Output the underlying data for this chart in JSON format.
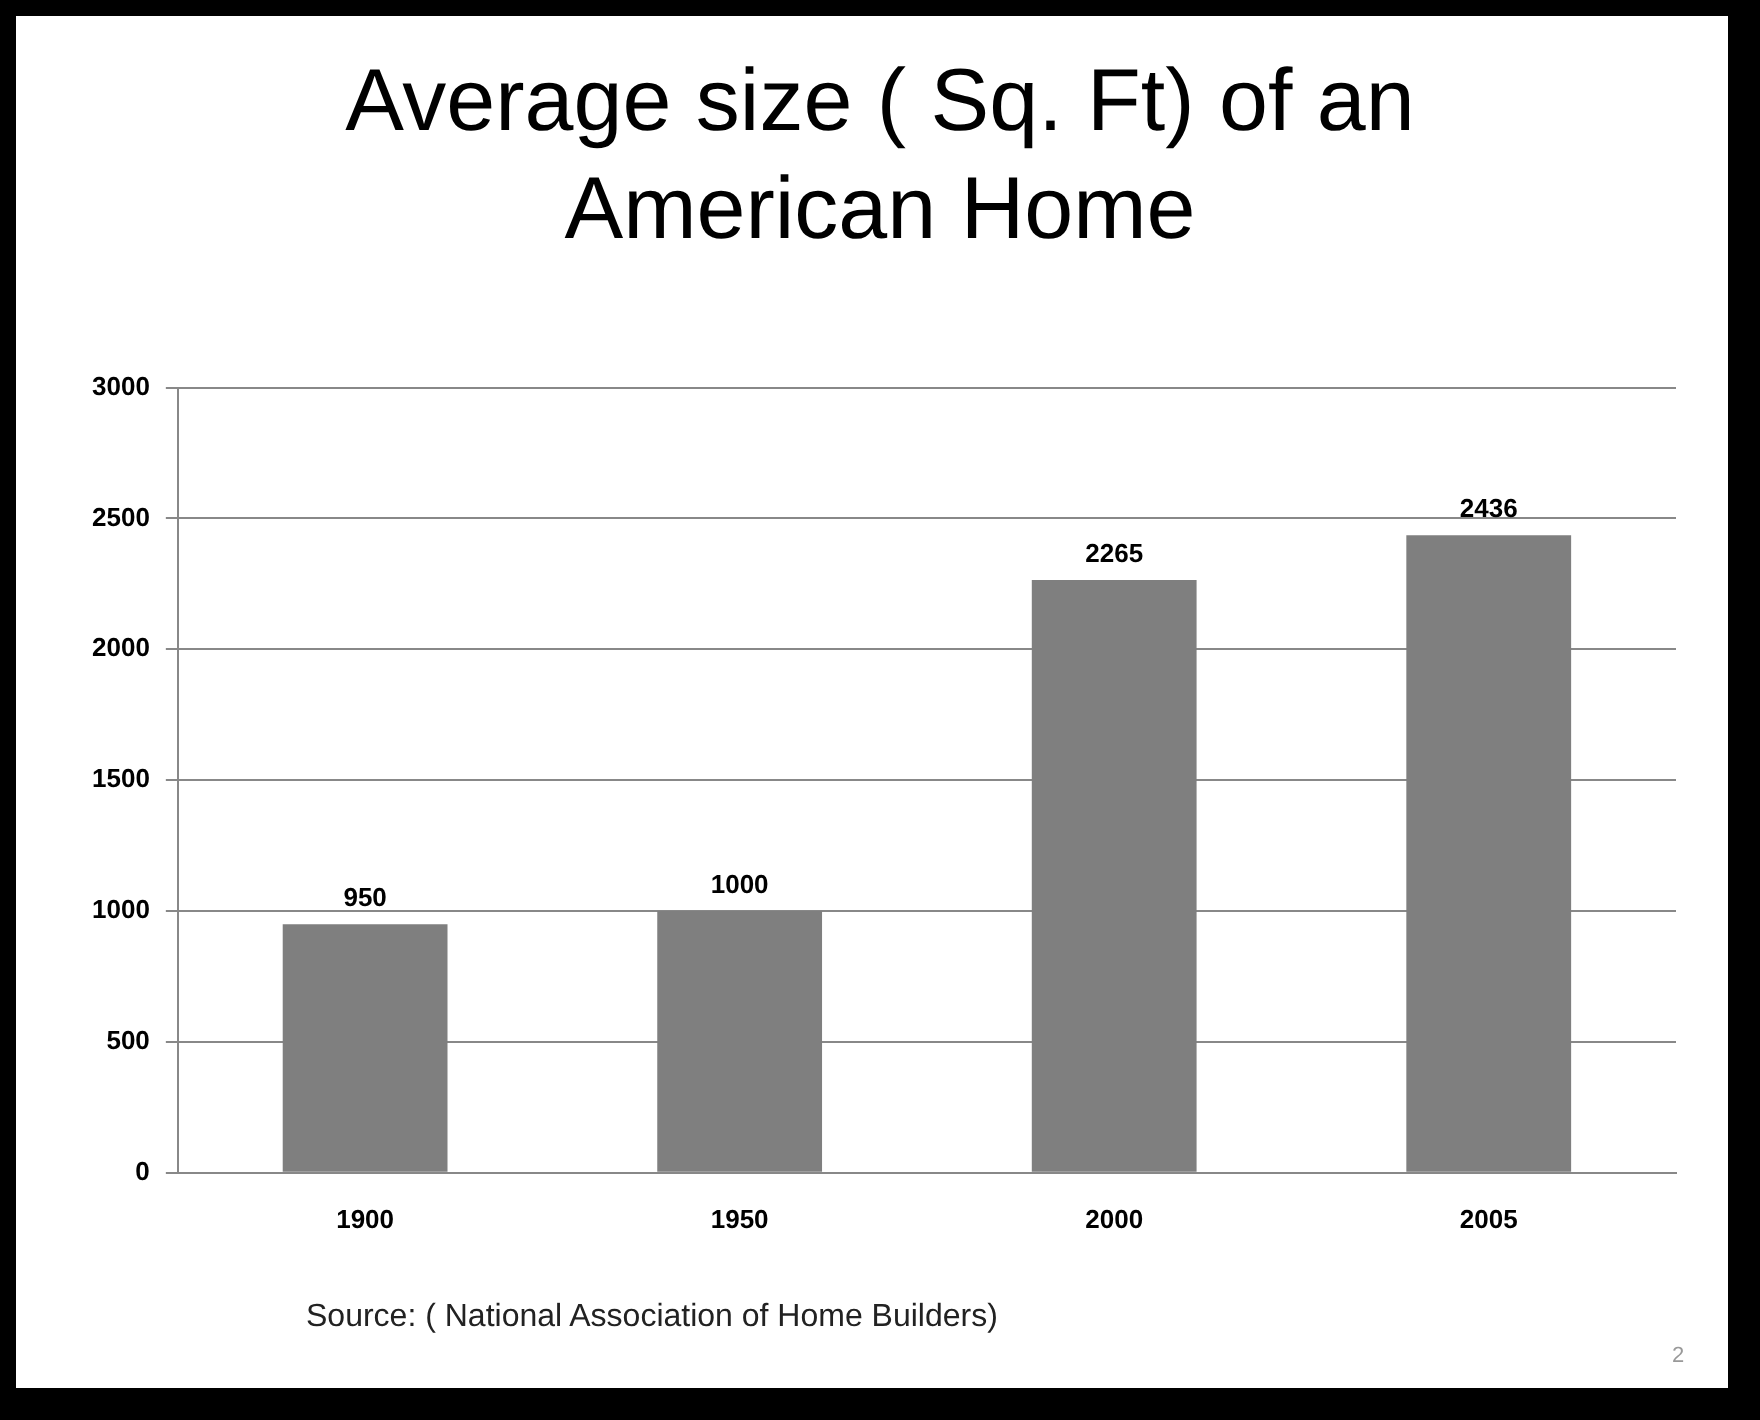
{
  "chart_data": {
    "type": "bar",
    "title": "Average size ( Sq. Ft) of an American Home",
    "categories": [
      "1900",
      "1950",
      "2000",
      "2005"
    ],
    "values": [
      950,
      1000,
      2265,
      2436
    ],
    "color": "#7f7f7f",
    "ylim": [
      0,
      3000
    ],
    "yticks": [
      0,
      500,
      1000,
      1500,
      2000,
      2500,
      3000
    ],
    "grid": "y",
    "data_labels": true,
    "annotations": [
      "Source: ( National Association of Home Builders)",
      "2"
    ]
  }
}
